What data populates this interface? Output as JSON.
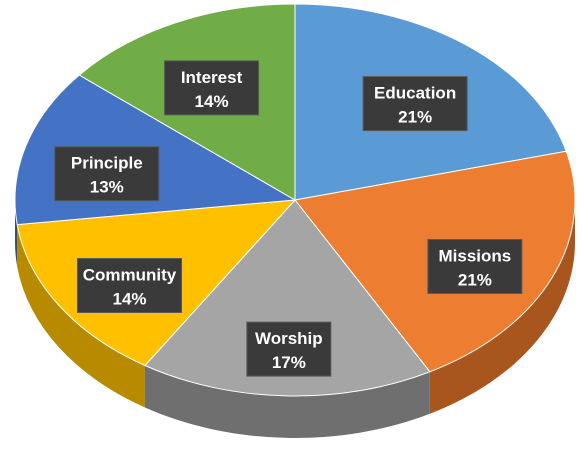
{
  "chart_data": {
    "type": "pie",
    "style": "3d",
    "categories": [
      "Education",
      "Missions",
      "Worship",
      "Community",
      "Principle",
      "Interest"
    ],
    "values": [
      21,
      21,
      17,
      14,
      13,
      14
    ],
    "value_labels": [
      "21%",
      "21%",
      "17%",
      "14%",
      "13%",
      "14%"
    ],
    "colors": [
      "#5B9BD5",
      "#ED7D31",
      "#A5A5A5",
      "#FFC000",
      "#4472C4",
      "#70AD47"
    ],
    "side_colors": [
      "#3d6f9c",
      "#a8561d",
      "#6f6f6f",
      "#b88a00",
      "#2d4f8c",
      "#4d7a30"
    ],
    "title": "",
    "legend": "none",
    "data_labels": "inside"
  }
}
